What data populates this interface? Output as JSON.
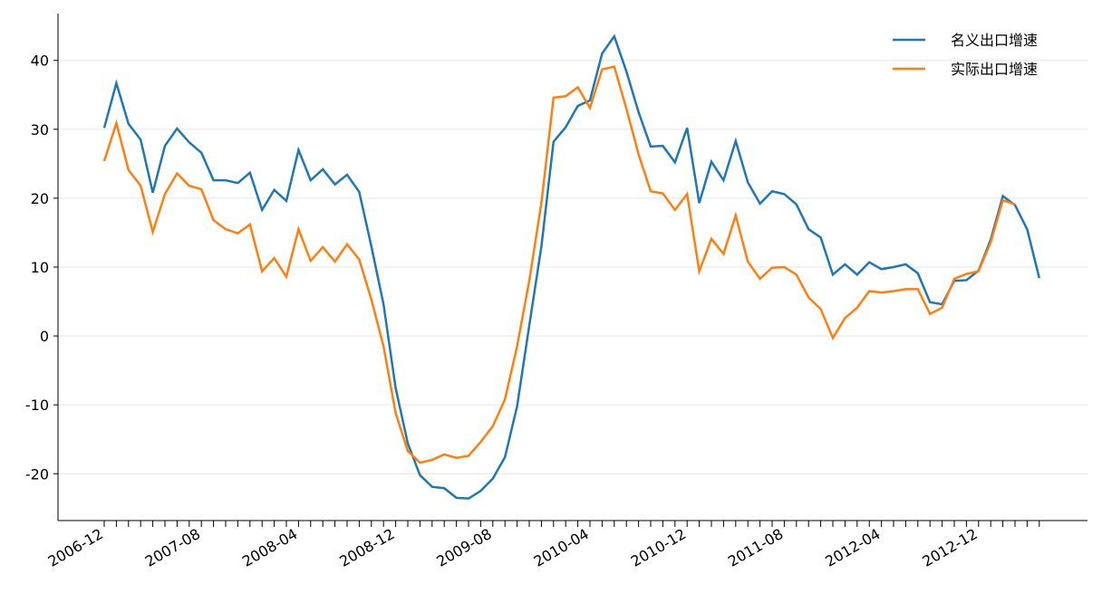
{
  "chart_data": {
    "type": "line",
    "categories": [
      "2006-12",
      null,
      null,
      null,
      null,
      null,
      null,
      null,
      "2007-08",
      null,
      null,
      null,
      null,
      null,
      null,
      null,
      "2008-04",
      null,
      null,
      null,
      null,
      null,
      null,
      null,
      "2008-12",
      null,
      null,
      null,
      null,
      null,
      null,
      null,
      "2009-08",
      null,
      null,
      null,
      null,
      null,
      null,
      null,
      "2010-04",
      null,
      null,
      null,
      null,
      null,
      null,
      null,
      "2010-12",
      null,
      null,
      null,
      null,
      null,
      null,
      null,
      "2011-08",
      null,
      null,
      null,
      null,
      null,
      null,
      null,
      "2012-04",
      null,
      null,
      null,
      null,
      null,
      null,
      null,
      "2012-12",
      null,
      null,
      null,
      null,
      null
    ],
    "series": [
      {
        "name": "名义出口增速",
        "color": "#1f77b4",
        "values": [
          30.2,
          36.7,
          30.8,
          28.5,
          20.8,
          27.6,
          30.1,
          28.1,
          26.6,
          22.6,
          22.6,
          22.2,
          23.7,
          18.3,
          21.2,
          19.6,
          27.0,
          22.6,
          24.2,
          22.0,
          23.4,
          20.9,
          13.0,
          4.6,
          -7.6,
          -15.6,
          -20.2,
          -21.9,
          -22.1,
          -23.5,
          -23.6,
          -22.5,
          -20.7,
          -17.6,
          -10.2,
          1.5,
          13.0,
          28.2,
          30.3,
          33.4,
          34.2,
          41.0,
          43.5,
          38.4,
          32.5,
          27.5,
          27.6,
          25.2,
          30.2,
          19.3,
          25.3,
          22.6,
          28.3,
          22.3,
          19.2,
          21.0,
          20.6,
          19.1,
          15.5,
          14.3,
          8.9,
          10.4,
          8.9,
          10.7,
          9.7,
          10.0,
          10.4,
          9.1,
          4.9,
          4.6,
          8.0,
          8.1,
          9.5,
          14.0,
          20.3,
          19.0,
          15.5,
          8.4
        ]
      },
      {
        "name": "实际出口增速",
        "color": "#ff7f0e",
        "values": [
          25.4,
          30.9,
          24.1,
          21.8,
          15.1,
          20.6,
          23.6,
          21.8,
          21.3,
          16.8,
          15.5,
          14.9,
          16.2,
          9.4,
          11.3,
          8.6,
          15.5,
          10.9,
          12.9,
          10.8,
          13.3,
          11.1,
          5.3,
          -1.5,
          -11.2,
          -16.7,
          -18.4,
          -18.0,
          -17.2,
          -17.7,
          -17.4,
          -15.4,
          -13.1,
          -9.2,
          -1.5,
          8.0,
          19.3,
          34.6,
          34.8,
          36.1,
          33.1,
          38.7,
          39.1,
          33.0,
          26.4,
          21.0,
          20.7,
          18.3,
          20.6,
          9.4,
          14.1,
          11.9,
          17.5,
          10.8,
          8.3,
          9.9,
          10.0,
          8.9,
          5.6,
          3.9,
          -0.3,
          2.6,
          4.1,
          6.5,
          6.3,
          6.5,
          6.8,
          6.8,
          3.2,
          4.1,
          8.3,
          9.0,
          9.4,
          13.6,
          19.7,
          19.1,
          null,
          null
        ]
      }
    ],
    "ylim": [
      -26.8,
      46.8
    ],
    "yticks": [
      -20,
      -10,
      0,
      10,
      20,
      30,
      40
    ],
    "grid": true,
    "legend": "upper right"
  }
}
